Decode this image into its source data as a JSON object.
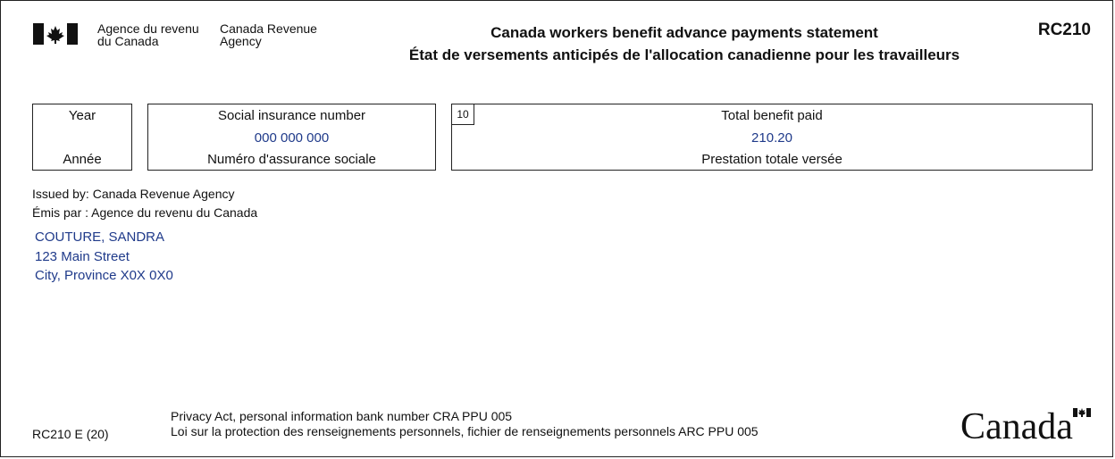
{
  "header": {
    "agency_fr_line1": "Agence du revenu",
    "agency_fr_line2": "du Canada",
    "agency_en_line1": "Canada Revenue",
    "agency_en_line2": "Agency",
    "title_en": "Canada workers benefit advance payments statement",
    "title_fr": "État de versements anticipés de l'allocation canadienne pour les travailleurs",
    "form_code": "RC210"
  },
  "fields": {
    "year": {
      "label_en": "Year",
      "label_fr": "Année",
      "value": ""
    },
    "sin": {
      "label_en": "Social insurance number",
      "label_fr": "Numéro d'assurance sociale",
      "value": "000 000 000"
    },
    "total": {
      "box_number": "10",
      "label_en": "Total benefit paid",
      "label_fr": "Prestation totale versée",
      "value": "210.20"
    }
  },
  "issuer": {
    "en": "Issued by: Canada Revenue Agency",
    "fr": "Émis par : Agence du revenu du Canada"
  },
  "recipient": {
    "name": "COUTURE, SANDRA",
    "street": "123 Main Street",
    "city": "City, Province X0X 0X0"
  },
  "footer": {
    "form_id": "RC210 E (20)",
    "privacy_en": "Privacy Act, personal information bank number CRA PPU 005",
    "privacy_fr": "Loi sur la protection des renseignements personnels, fichier de renseignements personnels ARC PPU 005",
    "wordmark": "Canada"
  },
  "colors": {
    "flag_red": "#111111",
    "value_text": "#1f3a8a"
  }
}
